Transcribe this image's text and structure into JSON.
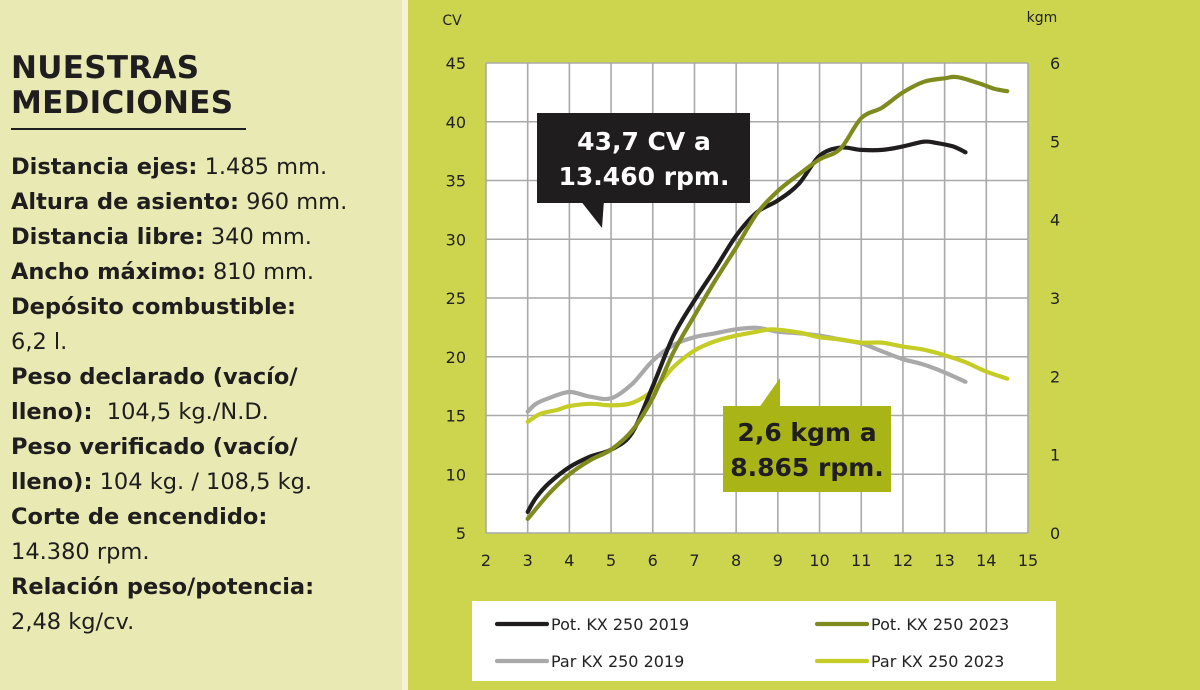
{
  "specs": {
    "title_line1": "NUESTRAS",
    "title_line2": "MEDICIONES",
    "lines": [
      {
        "label": "Distancia ejes:",
        "value": " 1.485 mm."
      },
      {
        "label": "Altura de asiento:",
        "value": " 960 mm."
      },
      {
        "label": "Distancia libre:",
        "value": " 340 mm."
      },
      {
        "label": "Ancho máximo:",
        "value": " 810 mm."
      },
      {
        "label": "Depósito combustible:",
        "value": ""
      },
      {
        "label": "",
        "value": "6,2 l."
      },
      {
        "label": "Peso declarado (vacío/",
        "value": ""
      },
      {
        "label": "lleno):",
        "value": "  104,5 kg./N.D."
      },
      {
        "label": "Peso verificado (vacío/",
        "value": ""
      },
      {
        "label": "lleno):",
        "value": " 104 kg. / 108,5 kg."
      },
      {
        "label": "Corte de encendido:",
        "value": ""
      },
      {
        "label": "",
        "value": "14.380 rpm."
      },
      {
        "label": "Relación peso/potencia:",
        "value": ""
      },
      {
        "label": "",
        "value": "2,48 kg/cv."
      }
    ]
  },
  "colors": {
    "specs_bg": "#e9eab3",
    "chart_bg": "#cdd44d",
    "plot_bg": "#ffffff",
    "grid": "#a9a9a9",
    "pot_2019": "#1f1d1e",
    "pot_2023": "#7f8b1e",
    "par_2019": "#a9a9a9",
    "par_2023": "#c5cc26",
    "callout_dark_bg": "#1f1d1e",
    "callout_olive_bg": "#a9b416"
  },
  "chart_data": {
    "type": "line",
    "xlabel": "",
    "ylabel_left": "CV",
    "ylabel_right": "kgm",
    "xlim": [
      2,
      15
    ],
    "ylim_left": [
      5,
      45
    ],
    "ylim_right": [
      0,
      6
    ],
    "x_ticks": [
      "2",
      "3",
      "4",
      "5",
      "6",
      "7",
      "8",
      "9",
      "10",
      "11",
      "12",
      "13",
      "14",
      "15"
    ],
    "y_left_ticks": [
      "5",
      "10",
      "15",
      "20",
      "25",
      "30",
      "35",
      "40",
      "45"
    ],
    "y_right_ticks": [
      "0",
      "1",
      "2",
      "3",
      "4",
      "5",
      "6"
    ],
    "grid": true,
    "legend_position": "bottom",
    "series": [
      {
        "name": "Pot. KX 250 2019",
        "axis": "left",
        "color": "#1f1d1e",
        "x": [
          3,
          3.2,
          3.5,
          4,
          4.5,
          5,
          5.5,
          6,
          6.5,
          7,
          7.5,
          8,
          8.5,
          9,
          9.5,
          10,
          10.5,
          11,
          11.5,
          12,
          12.5,
          12.8,
          13.2,
          13.5
        ],
        "y": [
          6.8,
          8,
          9.2,
          10.6,
          11.5,
          12.1,
          13.5,
          17.5,
          21.8,
          24.8,
          27.5,
          30.3,
          32.3,
          33.3,
          34.7,
          37.1,
          37.8,
          37.6,
          37.6,
          37.9,
          38.3,
          38.2,
          37.9,
          37.4
        ]
      },
      {
        "name": "Pot. KX 250 2023",
        "axis": "left",
        "color": "#7f8b1e",
        "x": [
          3,
          3.5,
          4,
          4.5,
          5,
          5.5,
          6,
          6.5,
          7,
          7.5,
          8,
          8.5,
          9,
          9.5,
          10,
          10.5,
          11,
          11.5,
          12,
          12.5,
          13,
          13.3,
          13.8,
          14.2,
          14.5
        ],
        "y": [
          6.2,
          8.3,
          10,
          11.2,
          12.1,
          13.7,
          16.5,
          20.4,
          23.5,
          26.5,
          29.3,
          32.2,
          34.1,
          35.5,
          36.8,
          37.7,
          40.3,
          41.2,
          42.5,
          43.4,
          43.7,
          43.8,
          43.3,
          42.8,
          42.6
        ]
      },
      {
        "name": "Par KX 250 2019",
        "axis": "right",
        "color": "#a9a9a9",
        "x": [
          3,
          3.2,
          3.5,
          4,
          4.5,
          5,
          5.5,
          6,
          6.5,
          7,
          7.5,
          8,
          8.5,
          9,
          9.5,
          10,
          10.5,
          11,
          11.5,
          12,
          12.5,
          13,
          13.5
        ],
        "y": [
          1.55,
          1.65,
          1.72,
          1.8,
          1.74,
          1.72,
          1.9,
          2.2,
          2.4,
          2.5,
          2.55,
          2.6,
          2.62,
          2.57,
          2.55,
          2.52,
          2.47,
          2.42,
          2.32,
          2.22,
          2.15,
          2.05,
          1.93
        ]
      },
      {
        "name": "Par KX 250 2023",
        "axis": "right",
        "color": "#c5cc26",
        "x": [
          3,
          3.3,
          3.7,
          4,
          4.5,
          5,
          5.5,
          6,
          6.5,
          7,
          7.5,
          8,
          8.5,
          8.865,
          9.5,
          10,
          10.5,
          11,
          11.5,
          12,
          12.5,
          13,
          13.5,
          14,
          14.5
        ],
        "y": [
          1.42,
          1.52,
          1.57,
          1.62,
          1.65,
          1.63,
          1.66,
          1.82,
          2.12,
          2.33,
          2.45,
          2.52,
          2.57,
          2.6,
          2.56,
          2.5,
          2.47,
          2.43,
          2.43,
          2.38,
          2.34,
          2.27,
          2.18,
          2.06,
          1.97
        ]
      }
    ],
    "annotations": [
      {
        "line1": "43,7 CV a",
        "line2": "13.460 rpm."
      },
      {
        "line1": "2,6 kgm a",
        "line2": "8.865 rpm."
      }
    ]
  }
}
